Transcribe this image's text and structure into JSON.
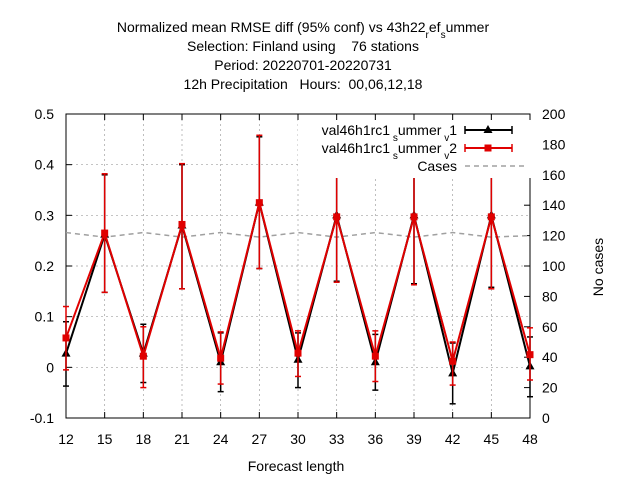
{
  "chart_data": {
    "type": "line",
    "title_lines": [
      "Normalized mean RMSE diff (95% conf) vs 43h22_ref_summer",
      "Selection: Finland using    76 stations",
      "Period: 20220701-20220731",
      "12h Precipitation   Hours:  00,06,12,18"
    ],
    "xlabel": "Forecast length",
    "ylabel": "",
    "y2label": "No cases",
    "x": [
      12,
      15,
      18,
      21,
      24,
      27,
      30,
      33,
      36,
      39,
      42,
      45,
      48
    ],
    "xticks": [
      "12",
      "15",
      "18",
      "21",
      "24",
      "27",
      "30",
      "33",
      "36",
      "39",
      "42",
      "45",
      "48"
    ],
    "xlim": [
      12,
      48
    ],
    "ylim": [
      -0.1,
      0.5
    ],
    "yticks": [
      "-0.1",
      "0",
      "0.1",
      "0.2",
      "0.3",
      "0.4",
      "0.5"
    ],
    "y2lim": [
      0,
      200
    ],
    "y2ticks": [
      "0",
      "20",
      "40",
      "60",
      "80",
      "100",
      "120",
      "140",
      "160",
      "180",
      "200"
    ],
    "grid": true,
    "legend_position": "top-right",
    "series": [
      {
        "name": "val46h1rc1_summer_v1",
        "color": "#000000",
        "marker": "triangle",
        "values": [
          0.027,
          0.262,
          0.027,
          0.28,
          0.01,
          0.325,
          0.015,
          0.3,
          0.01,
          0.3,
          -0.012,
          0.3,
          0.002
        ],
        "err_low": [
          -0.037,
          0.148,
          -0.03,
          0.155,
          -0.048,
          0.195,
          -0.04,
          0.17,
          -0.045,
          0.165,
          -0.072,
          0.158,
          -0.058
        ],
        "err_high": [
          0.09,
          0.38,
          0.085,
          0.4,
          0.068,
          0.455,
          0.068,
          0.43,
          0.065,
          0.435,
          0.048,
          0.44,
          0.06
        ]
      },
      {
        "name": "val46h1rc1_summer_v2",
        "color": "#e00000",
        "marker": "square",
        "values": [
          0.058,
          0.265,
          0.022,
          0.282,
          0.018,
          0.325,
          0.028,
          0.297,
          0.022,
          0.297,
          0.012,
          0.297,
          0.025
        ],
        "err_low": [
          -0.005,
          0.148,
          -0.04,
          0.155,
          -0.033,
          0.195,
          -0.018,
          0.168,
          -0.028,
          0.163,
          -0.035,
          0.155,
          -0.025
        ],
        "err_high": [
          0.12,
          0.382,
          0.08,
          0.402,
          0.07,
          0.458,
          0.072,
          0.428,
          0.072,
          0.432,
          0.05,
          0.438,
          0.078
        ]
      },
      {
        "name": "Cases",
        "color": "#a0a0a0",
        "dashed": true,
        "axis": "y2",
        "values": [
          122,
          119,
          122,
          119,
          122,
          119,
          122,
          119,
          122,
          119,
          122,
          119,
          120
        ]
      }
    ]
  }
}
